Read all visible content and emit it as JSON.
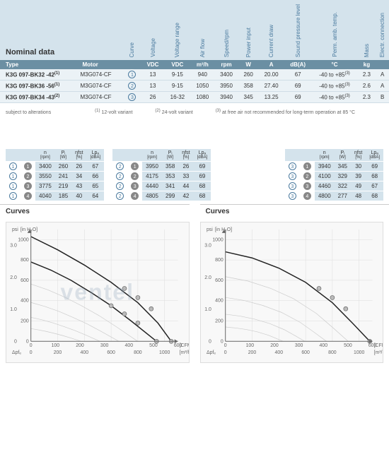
{
  "header": {
    "nominal": "Nominal data",
    "cols": [
      "Curve",
      "Voltage",
      "Voltage range",
      "Air flow",
      "Speed/rpm",
      "Power input",
      "Current draw",
      "Sound pressure level",
      "Perm. amb. temp.",
      "Mass",
      "Electr. connection"
    ],
    "type": "Type",
    "motor": "Motor",
    "units": [
      "",
      "VDC",
      "VDC",
      "m³/h",
      "rpm",
      "W",
      "A",
      "dB(A)",
      "°C",
      "kg",
      ""
    ]
  },
  "rows": [
    {
      "type": "K3G 097-BK32 -42",
      "sup": "(1)",
      "motor": "M3G074-CF",
      "curve": "1",
      "v": "13",
      "vr": "9-15",
      "af": "940",
      "sp": "3400",
      "pw": "260",
      "cd": "20.00",
      "db": "67",
      "temp": "-40 to +85",
      "tsup": "(3)",
      "mass": "2.3",
      "ec": "A"
    },
    {
      "type": "K3G 097-BK36 -56",
      "sup": "(1)",
      "motor": "M3G074-CF",
      "curve": "2",
      "v": "13",
      "vr": "9-15",
      "af": "1050",
      "sp": "3950",
      "pw": "358",
      "cd": "27.40",
      "db": "69",
      "temp": "-40 to +85",
      "tsup": "(3)",
      "mass": "2.6",
      "ec": "A"
    },
    {
      "type": "K3G 097-BK34 -43",
      "sup": "(2)",
      "motor": "M3G074-CF",
      "curve": "3",
      "v": "26",
      "vr": "16-32",
      "af": "1080",
      "sp": "3940",
      "pw": "345",
      "cd": "13.25",
      "db": "69",
      "temp": "-40 to +85",
      "tsup": "(3)",
      "mass": "2.3",
      "ec": "B"
    }
  ],
  "footnotes": {
    "subject": "subject to alterations",
    "n1": "12-volt variant",
    "n2": "24-volt variant",
    "n3": "at free air not recommended for long-term operation at 85 °C"
  },
  "perfHdr": {
    "n": "n",
    "nSub": "[rpm]",
    "p": "Pᵢ",
    "pSub": "[W]",
    "eta": "ηfst",
    "etaSub": "[%]",
    "lp": "Lpₐ",
    "lpSub": "[dBA]"
  },
  "perf1": [
    {
      "b": "1",
      "pt": "1",
      "n": "3400",
      "p": "260",
      "eta": "26",
      "lp": "67"
    },
    {
      "b": "1",
      "pt": "2",
      "n": "3550",
      "p": "241",
      "eta": "34",
      "lp": "66"
    },
    {
      "b": "1",
      "pt": "3",
      "n": "3775",
      "p": "219",
      "eta": "43",
      "lp": "65"
    },
    {
      "b": "1",
      "pt": "4",
      "n": "4040",
      "p": "185",
      "eta": "40",
      "lp": "64"
    }
  ],
  "perf2": [
    {
      "b": "2",
      "pt": "1",
      "n": "3950",
      "p": "358",
      "eta": "26",
      "lp": "69"
    },
    {
      "b": "2",
      "pt": "2",
      "n": "4175",
      "p": "353",
      "eta": "33",
      "lp": "69"
    },
    {
      "b": "2",
      "pt": "3",
      "n": "4440",
      "p": "341",
      "eta": "44",
      "lp": "68"
    },
    {
      "b": "2",
      "pt": "4",
      "n": "4805",
      "p": "299",
      "eta": "42",
      "lp": "68"
    }
  ],
  "perf3": [
    {
      "b": "3",
      "pt": "1",
      "n": "3940",
      "p": "345",
      "eta": "30",
      "lp": "69"
    },
    {
      "b": "3",
      "pt": "2",
      "n": "4100",
      "p": "329",
      "eta": "39",
      "lp": "68"
    },
    {
      "b": "3",
      "pt": "3",
      "n": "4460",
      "p": "322",
      "eta": "49",
      "lp": "67"
    },
    {
      "b": "3",
      "pt": "4",
      "n": "4800",
      "p": "277",
      "eta": "48",
      "lp": "68"
    }
  ],
  "curvesTitle": "Curves",
  "watermark": "ventel",
  "chart": {
    "yTicks": [
      0,
      200,
      400,
      600,
      800,
      1000
    ],
    "yMax": 1100,
    "y2Ticks": [
      "0",
      "1.0",
      "2.0",
      "3.0"
    ],
    "xTicksTop": [
      0,
      100,
      200,
      300,
      400,
      500,
      600
    ],
    "xTicksBot": [
      0,
      200,
      400,
      600,
      800,
      1000
    ],
    "xUnitTop": "[CFM]",
    "xUnitBot": "[m³/h]",
    "yUnit": "psi",
    "yUnit2": "[in H₂O]",
    "deltaP": "Δpfₑ"
  },
  "curves1": {
    "c1": [
      [
        0,
        780
      ],
      [
        150,
        700
      ],
      [
        300,
        600
      ],
      [
        450,
        480
      ],
      [
        600,
        350
      ],
      [
        750,
        200
      ],
      [
        940,
        0
      ]
    ],
    "c2": [
      [
        0,
        1030
      ],
      [
        200,
        900
      ],
      [
        400,
        750
      ],
      [
        600,
        580
      ],
      [
        800,
        380
      ],
      [
        950,
        180
      ],
      [
        1050,
        0
      ]
    ],
    "points": [
      [
        600,
        350
      ],
      [
        700,
        270
      ],
      [
        800,
        180
      ],
      [
        940,
        0
      ],
      [
        700,
        520
      ],
      [
        800,
        430
      ],
      [
        900,
        320
      ],
      [
        1050,
        0
      ]
    ]
  },
  "curves2": {
    "c3": [
      [
        0,
        880
      ],
      [
        200,
        820
      ],
      [
        400,
        720
      ],
      [
        600,
        580
      ],
      [
        800,
        380
      ],
      [
        950,
        180
      ],
      [
        1080,
        0
      ]
    ],
    "points": [
      [
        700,
        520
      ],
      [
        800,
        430
      ],
      [
        900,
        320
      ],
      [
        1080,
        0
      ]
    ]
  }
}
